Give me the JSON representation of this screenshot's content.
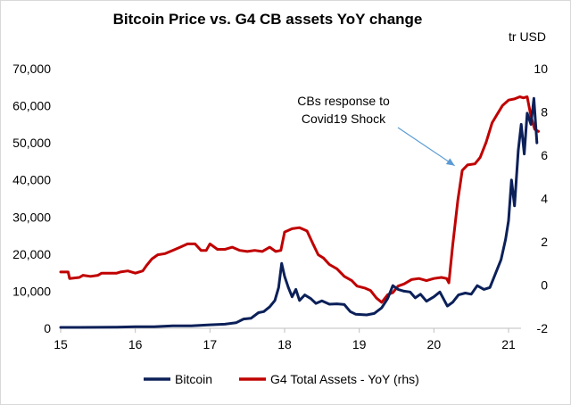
{
  "chart_data": {
    "type": "line",
    "title": "Bitcoin Price vs. G4 CB assets YoY change",
    "right_axis_unit": "tr USD",
    "x_ticks": [
      "15",
      "16",
      "17",
      "18",
      "19",
      "20",
      "21"
    ],
    "xlim": [
      2015.0,
      2021.45
    ],
    "y_left": {
      "ticks": [
        "0",
        "10,000",
        "20,000",
        "30,000",
        "40,000",
        "50,000",
        "60,000",
        "70,000"
      ],
      "ylim": [
        0,
        70000
      ]
    },
    "y_right": {
      "ticks": [
        "-2",
        "0",
        "2",
        "4",
        "6",
        "8",
        "10"
      ],
      "ylim": [
        -2,
        10
      ]
    },
    "grid": false,
    "legend_position": "bottom",
    "annotation": {
      "lines": [
        "CBs response to",
        "Covid19 Shock"
      ],
      "arrow_target": [
        2020.35,
        5.6
      ]
    },
    "series": [
      {
        "name": "Bitcoin",
        "axis": "left",
        "color": "#0b2059",
        "points": [
          [
            2015.0,
            250
          ],
          [
            2015.25,
            240
          ],
          [
            2015.5,
            260
          ],
          [
            2015.75,
            320
          ],
          [
            2016.0,
            420
          ],
          [
            2016.25,
            430
          ],
          [
            2016.5,
            650
          ],
          [
            2016.75,
            640
          ],
          [
            2017.0,
            950
          ],
          [
            2017.2,
            1100
          ],
          [
            2017.35,
            1500
          ],
          [
            2017.45,
            2500
          ],
          [
            2017.55,
            2700
          ],
          [
            2017.65,
            4200
          ],
          [
            2017.72,
            4500
          ],
          [
            2017.8,
            5800
          ],
          [
            2017.87,
            7500
          ],
          [
            2017.92,
            11000
          ],
          [
            2017.96,
            17500
          ],
          [
            2018.0,
            14000
          ],
          [
            2018.05,
            11000
          ],
          [
            2018.1,
            8500
          ],
          [
            2018.15,
            10500
          ],
          [
            2018.2,
            7500
          ],
          [
            2018.27,
            9000
          ],
          [
            2018.35,
            8000
          ],
          [
            2018.42,
            6700
          ],
          [
            2018.5,
            7400
          ],
          [
            2018.6,
            6500
          ],
          [
            2018.7,
            6600
          ],
          [
            2018.8,
            6400
          ],
          [
            2018.88,
            4500
          ],
          [
            2018.95,
            3800
          ],
          [
            2019.1,
            3600
          ],
          [
            2019.2,
            4000
          ],
          [
            2019.3,
            5500
          ],
          [
            2019.38,
            8000
          ],
          [
            2019.45,
            11500
          ],
          [
            2019.52,
            10500
          ],
          [
            2019.6,
            10000
          ],
          [
            2019.68,
            9800
          ],
          [
            2019.75,
            8200
          ],
          [
            2019.82,
            9200
          ],
          [
            2019.9,
            7300
          ],
          [
            2020.0,
            8500
          ],
          [
            2020.08,
            9800
          ],
          [
            2020.18,
            6000
          ],
          [
            2020.25,
            7000
          ],
          [
            2020.33,
            9000
          ],
          [
            2020.42,
            9500
          ],
          [
            2020.5,
            9200
          ],
          [
            2020.58,
            11500
          ],
          [
            2020.67,
            10500
          ],
          [
            2020.75,
            11000
          ],
          [
            2020.83,
            15000
          ],
          [
            2020.9,
            18500
          ],
          [
            2020.96,
            24000
          ],
          [
            2021.0,
            29000
          ],
          [
            2021.04,
            40000
          ],
          [
            2021.08,
            33000
          ],
          [
            2021.13,
            48000
          ],
          [
            2021.17,
            55000
          ],
          [
            2021.21,
            47000
          ],
          [
            2021.25,
            58000
          ],
          [
            2021.3,
            55000
          ],
          [
            2021.34,
            62000
          ],
          [
            2021.38,
            50000
          ]
        ]
      },
      {
        "name": "G4 Total Assets - YoY (rhs)",
        "axis": "right",
        "color": "#c00000",
        "points": [
          [
            2015.0,
            0.6
          ],
          [
            2015.1,
            0.6
          ],
          [
            2015.12,
            0.3
          ],
          [
            2015.25,
            0.35
          ],
          [
            2015.3,
            0.45
          ],
          [
            2015.4,
            0.4
          ],
          [
            2015.5,
            0.45
          ],
          [
            2015.55,
            0.55
          ],
          [
            2015.75,
            0.55
          ],
          [
            2015.8,
            0.6
          ],
          [
            2015.9,
            0.65
          ],
          [
            2016.0,
            0.55
          ],
          [
            2016.1,
            0.65
          ],
          [
            2016.15,
            0.9
          ],
          [
            2016.22,
            1.2
          ],
          [
            2016.3,
            1.4
          ],
          [
            2016.4,
            1.45
          ],
          [
            2016.5,
            1.6
          ],
          [
            2016.6,
            1.75
          ],
          [
            2016.7,
            1.9
          ],
          [
            2016.8,
            1.9
          ],
          [
            2016.88,
            1.6
          ],
          [
            2016.95,
            1.6
          ],
          [
            2017.0,
            1.9
          ],
          [
            2017.1,
            1.65
          ],
          [
            2017.2,
            1.65
          ],
          [
            2017.3,
            1.75
          ],
          [
            2017.4,
            1.6
          ],
          [
            2017.5,
            1.55
          ],
          [
            2017.6,
            1.6
          ],
          [
            2017.7,
            1.55
          ],
          [
            2017.8,
            1.75
          ],
          [
            2017.88,
            1.55
          ],
          [
            2017.95,
            1.6
          ],
          [
            2018.0,
            2.45
          ],
          [
            2018.1,
            2.6
          ],
          [
            2018.2,
            2.65
          ],
          [
            2018.3,
            2.5
          ],
          [
            2018.38,
            1.9
          ],
          [
            2018.45,
            1.4
          ],
          [
            2018.52,
            1.25
          ],
          [
            2018.6,
            0.95
          ],
          [
            2018.7,
            0.75
          ],
          [
            2018.8,
            0.4
          ],
          [
            2018.9,
            0.2
          ],
          [
            2018.97,
            -0.05
          ],
          [
            2019.08,
            -0.15
          ],
          [
            2019.15,
            -0.25
          ],
          [
            2019.23,
            -0.6
          ],
          [
            2019.3,
            -0.8
          ],
          [
            2019.38,
            -0.45
          ],
          [
            2019.45,
            -0.35
          ],
          [
            2019.52,
            -0.05
          ],
          [
            2019.6,
            0.05
          ],
          [
            2019.7,
            0.25
          ],
          [
            2019.8,
            0.3
          ],
          [
            2019.9,
            0.2
          ],
          [
            2020.0,
            0.3
          ],
          [
            2020.1,
            0.35
          ],
          [
            2020.17,
            0.3
          ],
          [
            2020.2,
            0.1
          ],
          [
            2020.25,
            1.8
          ],
          [
            2020.32,
            3.9
          ],
          [
            2020.38,
            5.3
          ],
          [
            2020.45,
            5.55
          ],
          [
            2020.55,
            5.6
          ],
          [
            2020.62,
            5.9
          ],
          [
            2020.7,
            6.6
          ],
          [
            2020.78,
            7.5
          ],
          [
            2020.85,
            7.9
          ],
          [
            2020.92,
            8.3
          ],
          [
            2021.0,
            8.55
          ],
          [
            2021.08,
            8.6
          ],
          [
            2021.15,
            8.7
          ],
          [
            2021.2,
            8.65
          ],
          [
            2021.25,
            8.7
          ],
          [
            2021.3,
            7.8
          ],
          [
            2021.35,
            7.2
          ],
          [
            2021.4,
            7.1
          ]
        ]
      }
    ]
  }
}
